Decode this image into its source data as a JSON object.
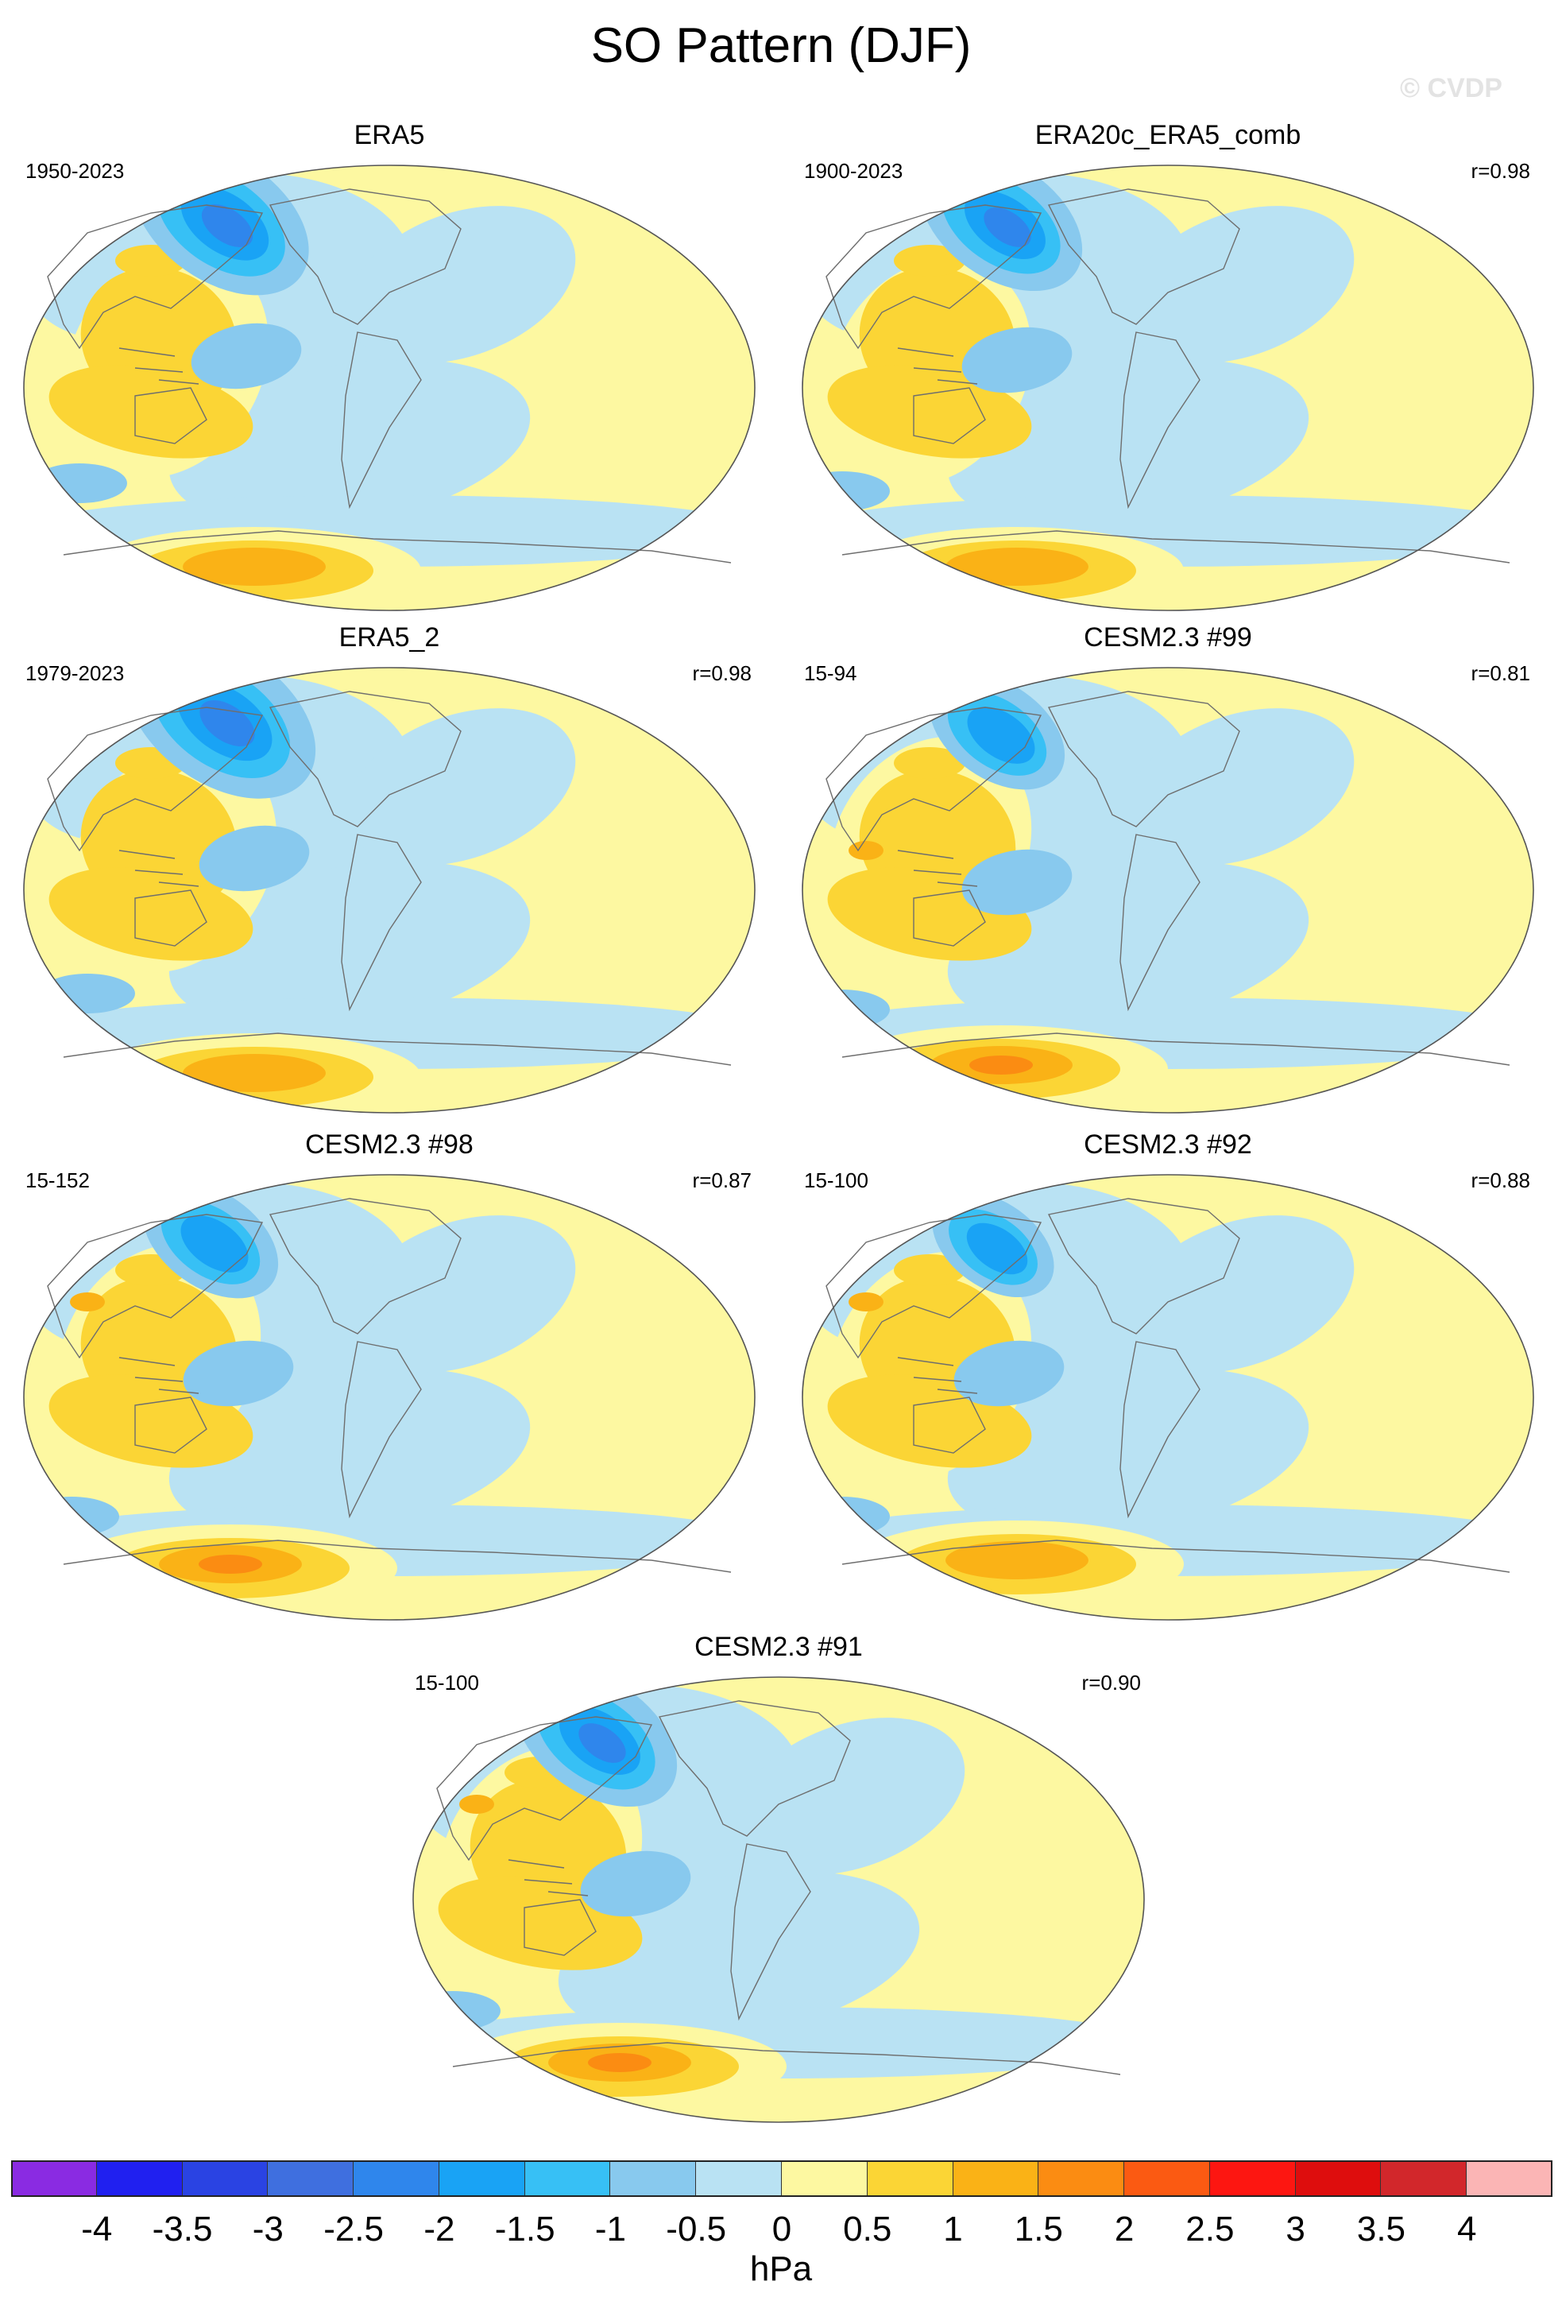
{
  "title": "SO Pattern (DJF)",
  "watermark": "© CVDP",
  "panels": [
    {
      "name": "ERA5",
      "period": "1950-2023",
      "r": ""
    },
    {
      "name": "ERA20c_ERA5_comb",
      "period": "1900-2023",
      "r": "r=0.98"
    },
    {
      "name": "ERA5_2",
      "period": "1979-2023",
      "r": "r=0.98"
    },
    {
      "name": "CESM2.3 #99",
      "period": "15-94",
      "r": "r=0.81"
    },
    {
      "name": "CESM2.3 #98",
      "period": "15-152",
      "r": "r=0.87"
    },
    {
      "name": "CESM2.3 #92",
      "period": "15-100",
      "r": "r=0.88"
    },
    {
      "name": "CESM2.3 #91",
      "period": "15-100",
      "r": "r=0.90"
    }
  ],
  "colorbar": {
    "units": "hPa",
    "ticks": [
      "-4",
      "-3.5",
      "-3",
      "-2.5",
      "-2",
      "-1.5",
      "-1",
      "-0.5",
      "0",
      "0.5",
      "1",
      "1.5",
      "2",
      "2.5",
      "3",
      "3.5",
      "4"
    ],
    "colors": [
      "#8a2be2",
      "#2020f0",
      "#2a43e3",
      "#3f6fdf",
      "#2f86ec",
      "#19a3f5",
      "#37c0f5",
      "#88c9ee",
      "#b9e2f3",
      "#fdf8a1",
      "#fbd535",
      "#fab216",
      "#fb8c12",
      "#fb5a12",
      "#fd1611",
      "#de0d0d",
      "#d2272b",
      "#fbb5b5"
    ]
  },
  "map_colors": {
    "ocean_neutral": "#b9e2f3",
    "land_neutral": "#fdf8a1",
    "coast": "#6e6e6e"
  }
}
